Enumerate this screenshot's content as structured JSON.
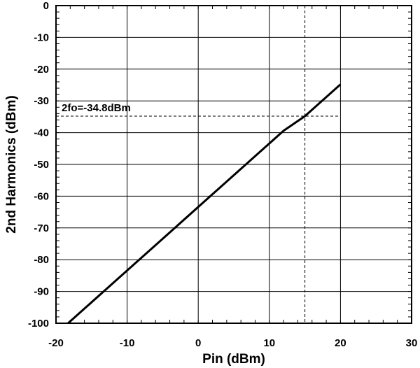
{
  "chart_data": {
    "type": "line",
    "xlabel": "Pin (dBm)",
    "ylabel": "2nd Harmonics (dBm)",
    "xlim": [
      -20,
      30
    ],
    "ylim": [
      -100,
      0
    ],
    "x_ticks": [
      -20,
      -10,
      0,
      10,
      20,
      30
    ],
    "y_ticks": [
      0,
      -10,
      -20,
      -30,
      -40,
      -50,
      -60,
      -70,
      -80,
      -90,
      -100
    ],
    "x_tick_labels": [
      "-20",
      "-10",
      "0",
      "10",
      "20",
      "30"
    ],
    "y_tick_labels": [
      "0",
      "-10",
      "-20",
      "-30",
      "-40",
      "-50",
      "-60",
      "-70",
      "-80",
      "-90",
      "-100"
    ],
    "grid": true,
    "series": [
      {
        "x": [
          -18.3,
          -13,
          -8,
          -3,
          2,
          7,
          12,
          15,
          20
        ],
        "y": [
          -100,
          -89.4,
          -79.4,
          -69.4,
          -59.4,
          -49.4,
          -39.4,
          -34.8,
          -24.8
        ]
      }
    ],
    "annotations": [
      {
        "text": "2fo=-34.8dBm",
        "x": 15,
        "y": -34.8
      }
    ],
    "color": "#000000"
  }
}
